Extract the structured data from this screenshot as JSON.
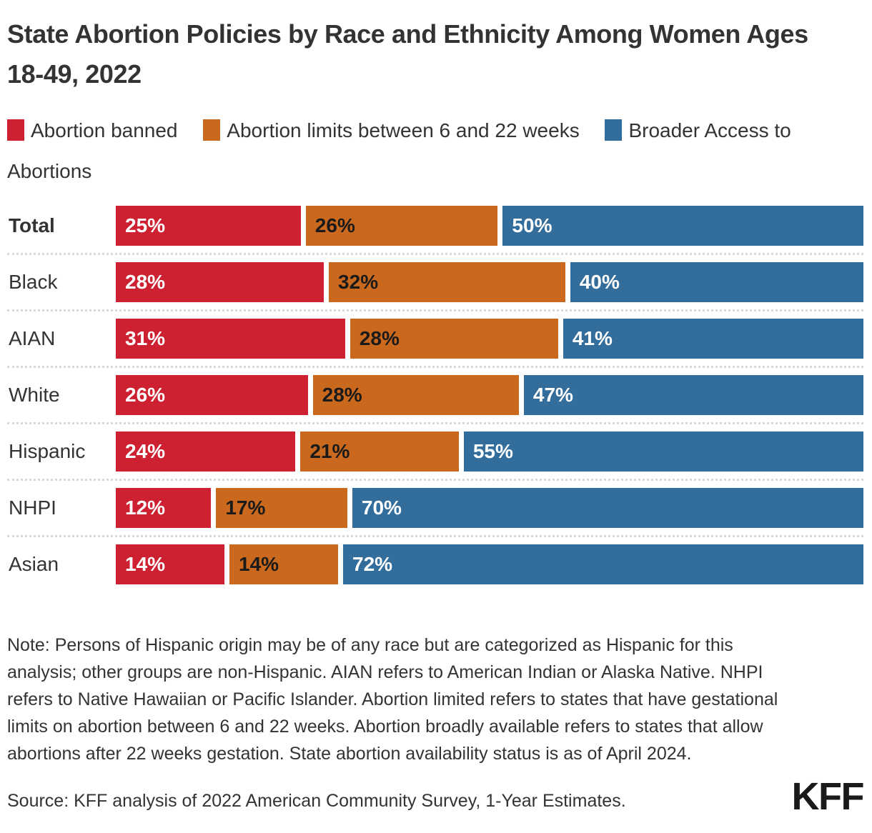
{
  "title": "State Abortion Policies by Race and Ethnicity Among Women Ages 18-49, 2022",
  "note": "Note: Persons of Hispanic origin may be of any race but are categorized as Hispanic for this analysis; other groups are non-Hispanic. AIAN refers to American Indian or Alaska Native. NHPI refers to Native Hawaiian or Pacific Islander. Abortion limited refers to states that have gestational limits on abortion between 6 and 22 weeks. Abortion broadly available refers to states that allow abortions after 22 weeks gestation. State abortion availability status is as of April 2024.",
  "source": "Source: KFF analysis of 2022 American Community Survey, 1-Year Estimates.",
  "logo_text": "KFF",
  "colors": {
    "banned": "#cd2131",
    "limited": "#ca691e",
    "broader": "#336d9b",
    "separator": "#d8d8d8",
    "text_dark": "#333333"
  },
  "chart_data": {
    "type": "bar",
    "orientation": "horizontal",
    "stacked": true,
    "value_suffix": "%",
    "legend_position": "top",
    "grid": false,
    "categories": [
      "Total",
      "Black",
      "AIAN",
      "White",
      "Hispanic",
      "NHPI",
      "Asian"
    ],
    "series": [
      {
        "name": "Abortion banned",
        "color": "#cd2131",
        "label_color": "#ffffff",
        "values": [
          25,
          28,
          31,
          26,
          24,
          12,
          14
        ]
      },
      {
        "name": "Abortion limits between 6 and 22 weeks",
        "color": "#ca691e",
        "label_color": "#1a1a1a",
        "values": [
          26,
          32,
          28,
          28,
          21,
          17,
          14
        ]
      },
      {
        "name": "Broader Access to Abortions",
        "color": "#336d9b",
        "label_color": "#ffffff",
        "values": [
          50,
          40,
          41,
          47,
          55,
          70,
          72
        ]
      }
    ]
  }
}
